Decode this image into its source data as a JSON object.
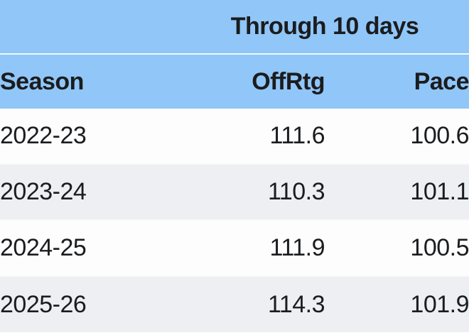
{
  "table": {
    "spanner_title": "Through 10 days",
    "columns": [
      "Season",
      "OffRtg",
      "Pace"
    ],
    "rows": [
      {
        "season": "2022-23",
        "offrtg": "111.6",
        "pace": "100.6"
      },
      {
        "season": "2023-24",
        "offrtg": "110.3",
        "pace": "101.1"
      },
      {
        "season": "2024-25",
        "offrtg": "111.9",
        "pace": "100.5"
      },
      {
        "season": "2025-26",
        "offrtg": "114.3",
        "pace": "101.9"
      }
    ]
  },
  "colors": {
    "header_bg": "#90c6f8",
    "row_bg": "#fdfdfe",
    "row_alt_bg": "#eeeff2",
    "text": "#1b1c1e",
    "header_divider": "#f3f8fd"
  },
  "chart_data": {
    "type": "table",
    "title": "Through 10 days",
    "categories": [
      "2022-23",
      "2023-24",
      "2024-25",
      "2025-26"
    ],
    "series": [
      {
        "name": "OffRtg",
        "values": [
          111.6,
          110.3,
          111.9,
          114.3
        ]
      },
      {
        "name": "Pace",
        "values": [
          100.6,
          101.1,
          100.5,
          101.9
        ]
      }
    ]
  }
}
